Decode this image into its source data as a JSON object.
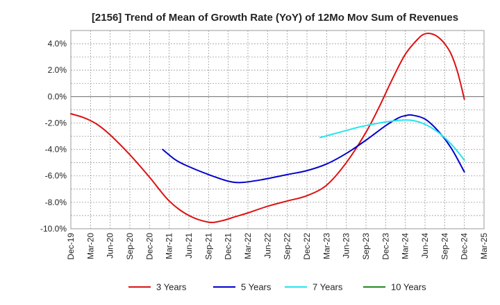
{
  "chart_data": {
    "type": "line",
    "title": "[2156]  Trend of Mean of Growth Rate (YoY) of 12Mo Mov Sum of Revenues",
    "xlabel": "",
    "ylabel": "",
    "ylim": [
      -10.0,
      5.0
    ],
    "y_ticks": [
      4.0,
      2.0,
      0.0,
      -2.0,
      -4.0,
      -6.0,
      -8.0,
      -10.0
    ],
    "y_tick_labels": [
      "4.0%",
      "2.0%",
      "0.0%",
      "-2.0%",
      "-4.0%",
      "-6.0%",
      "-8.0%",
      "-10.0%"
    ],
    "x_tick_labels": [
      "Dec-19",
      "Mar-20",
      "Jun-20",
      "Sep-20",
      "Dec-20",
      "Mar-21",
      "Jun-21",
      "Sep-21",
      "Dec-21",
      "Mar-22",
      "Jun-22",
      "Sep-22",
      "Dec-22",
      "Mar-23",
      "Jun-23",
      "Sep-23",
      "Dec-23",
      "Mar-24",
      "Jun-24",
      "Sep-24",
      "Dec-24",
      "Mar-25"
    ],
    "x_month_span": 63,
    "grid": true,
    "legend_position": "bottom",
    "series": [
      {
        "name": "3 Years",
        "color": "#dd1111",
        "x": [
          0,
          2,
          4,
          6,
          9,
          12,
          15,
          18,
          21,
          23,
          25,
          27,
          30,
          33,
          36,
          39,
          42,
          45,
          47,
          49,
          51,
          53,
          54,
          55,
          56,
          57,
          58,
          59,
          60
        ],
        "y": [
          -1.3,
          -1.6,
          -2.1,
          -2.9,
          -4.4,
          -6.1,
          -7.9,
          -9.0,
          -9.5,
          -9.4,
          -9.1,
          -8.8,
          -8.3,
          -7.9,
          -7.5,
          -6.7,
          -5.0,
          -2.7,
          -0.8,
          1.3,
          3.2,
          4.4,
          4.75,
          4.75,
          4.5,
          4.0,
          3.2,
          1.8,
          -0.2
        ]
      },
      {
        "name": "5 Years",
        "color": "#0000cc",
        "x": [
          14,
          16,
          18,
          21,
          24,
          26,
          29,
          33,
          36,
          39,
          42,
          45,
          48,
          50,
          51,
          52,
          54,
          56,
          58,
          60
        ],
        "y": [
          -4.0,
          -4.8,
          -5.3,
          -5.9,
          -6.4,
          -6.5,
          -6.3,
          -5.9,
          -5.6,
          -5.1,
          -4.3,
          -3.3,
          -2.2,
          -1.6,
          -1.45,
          -1.4,
          -1.7,
          -2.6,
          -3.9,
          -5.7
        ]
      },
      {
        "name": "7 Years",
        "color": "#22e5ee",
        "x": [
          38,
          41,
          44,
          47,
          50,
          52,
          54,
          56,
          58,
          60
        ],
        "y": [
          -3.1,
          -2.7,
          -2.3,
          -2.0,
          -1.8,
          -1.8,
          -2.1,
          -2.7,
          -3.6,
          -4.8
        ]
      },
      {
        "name": "10 Years",
        "color": "#228822",
        "x": [],
        "y": []
      }
    ]
  }
}
